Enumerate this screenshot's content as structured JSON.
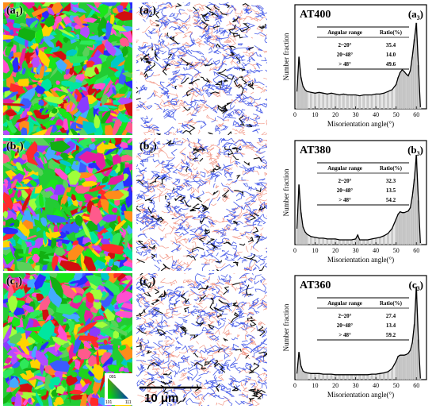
{
  "figure": {
    "scale_bar_label": "10 μm",
    "ipf_legend": {
      "top": "001",
      "left": "101",
      "right": "111"
    },
    "rows": [
      {
        "ebsd_label_main": "a",
        "ebsd_label_sub": "1",
        "boundary_label_main": "a",
        "boundary_label_sub": "2",
        "chart_label_main": "a",
        "chart_label_sub": "3"
      },
      {
        "ebsd_label_main": "b",
        "ebsd_label_sub": "1",
        "boundary_label_main": "b",
        "boundary_label_sub": "2",
        "chart_label_main": "b",
        "chart_label_sub": "3"
      },
      {
        "ebsd_label_main": "c",
        "ebsd_label_sub": "1",
        "boundary_label_main": "c",
        "boundary_label_sub": "2",
        "chart_label_main": "c",
        "chart_label_sub": "3"
      }
    ]
  },
  "chart_data": [
    {
      "type": "area",
      "title": "AT400",
      "xlabel": "Misorientation angle(°)",
      "ylabel": "Number fraction",
      "xlim": [
        0,
        65
      ],
      "xticks": [
        0,
        10,
        20,
        30,
        40,
        50,
        60
      ],
      "ylim": [
        0,
        0.12
      ],
      "x": [
        1,
        2,
        3,
        4,
        5,
        6,
        8,
        10,
        12,
        14,
        16,
        18,
        20,
        22,
        24,
        26,
        28,
        30,
        32,
        34,
        36,
        38,
        40,
        42,
        44,
        46,
        48,
        50,
        51,
        52,
        53,
        54,
        55,
        56,
        57,
        58,
        59,
        60,
        61,
        62
      ],
      "y": [
        0.02,
        0.06,
        0.036,
        0.026,
        0.022,
        0.02,
        0.019,
        0.018,
        0.019,
        0.018,
        0.017,
        0.018,
        0.017,
        0.016,
        0.017,
        0.016,
        0.016,
        0.016,
        0.015,
        0.016,
        0.016,
        0.016,
        0.017,
        0.017,
        0.018,
        0.02,
        0.022,
        0.028,
        0.036,
        0.042,
        0.045,
        0.043,
        0.04,
        0.038,
        0.044,
        0.06,
        0.08,
        0.099,
        0.05,
        0.002
      ],
      "table": {
        "headers": [
          "Angular range",
          "Ratio(%)"
        ],
        "rows": [
          [
            "2~20°",
            "35.4"
          ],
          [
            "20~48°",
            "14.0"
          ],
          [
            "> 48°",
            "49.6"
          ]
        ]
      }
    },
    {
      "type": "area",
      "title": "AT380",
      "xlabel": "Misorientation angle(°)",
      "ylabel": "Number fraction",
      "xlim": [
        0,
        65
      ],
      "xticks": [
        0,
        10,
        20,
        30,
        40,
        50,
        60
      ],
      "ylim": [
        0,
        0.13
      ],
      "x": [
        1,
        2,
        3,
        4,
        5,
        6,
        8,
        10,
        12,
        14,
        16,
        18,
        20,
        22,
        24,
        26,
        28,
        30,
        31,
        32,
        34,
        36,
        38,
        40,
        42,
        44,
        46,
        48,
        50,
        51,
        52,
        53,
        54,
        55,
        56,
        57,
        58,
        59,
        60,
        61,
        62
      ],
      "y": [
        0.02,
        0.075,
        0.04,
        0.022,
        0.016,
        0.013,
        0.01,
        0.009,
        0.008,
        0.008,
        0.007,
        0.007,
        0.007,
        0.006,
        0.006,
        0.006,
        0.006,
        0.007,
        0.012,
        0.006,
        0.006,
        0.006,
        0.007,
        0.008,
        0.009,
        0.011,
        0.014,
        0.02,
        0.032,
        0.038,
        0.041,
        0.04,
        0.04,
        0.041,
        0.042,
        0.046,
        0.06,
        0.082,
        0.112,
        0.055,
        0.002
      ],
      "table": {
        "headers": [
          "Angular range",
          "Ratio(%)"
        ],
        "rows": [
          [
            "2~20°",
            "32.3"
          ],
          [
            "20~48°",
            "13.5"
          ],
          [
            "> 48°",
            "54.2"
          ]
        ]
      }
    },
    {
      "type": "area",
      "title": "AT360",
      "xlabel": "Misorientation angle(°)",
      "ylabel": "Number fraction",
      "xlim": [
        0,
        65
      ],
      "xticks": [
        0,
        10,
        20,
        30,
        40,
        50,
        60
      ],
      "ylim": [
        0,
        0.17
      ],
      "x": [
        1,
        2,
        3,
        4,
        5,
        6,
        8,
        10,
        12,
        14,
        16,
        18,
        20,
        22,
        24,
        26,
        28,
        30,
        32,
        34,
        36,
        38,
        40,
        42,
        44,
        46,
        48,
        50,
        51,
        52,
        53,
        54,
        55,
        56,
        57,
        58,
        59,
        60,
        61,
        62
      ],
      "y": [
        0.01,
        0.045,
        0.022,
        0.014,
        0.012,
        0.011,
        0.01,
        0.01,
        0.01,
        0.009,
        0.009,
        0.009,
        0.008,
        0.008,
        0.008,
        0.008,
        0.008,
        0.008,
        0.008,
        0.008,
        0.008,
        0.009,
        0.009,
        0.01,
        0.011,
        0.013,
        0.018,
        0.03,
        0.038,
        0.04,
        0.04,
        0.04,
        0.041,
        0.043,
        0.048,
        0.06,
        0.09,
        0.152,
        0.065,
        0.002
      ],
      "table": {
        "headers": [
          "Angular range",
          "Ratio(%)"
        ],
        "rows": [
          [
            "2~20°",
            "27.4"
          ],
          [
            "20~48°",
            "13.4"
          ],
          [
            "> 48°",
            "59.2"
          ]
        ]
      }
    }
  ]
}
